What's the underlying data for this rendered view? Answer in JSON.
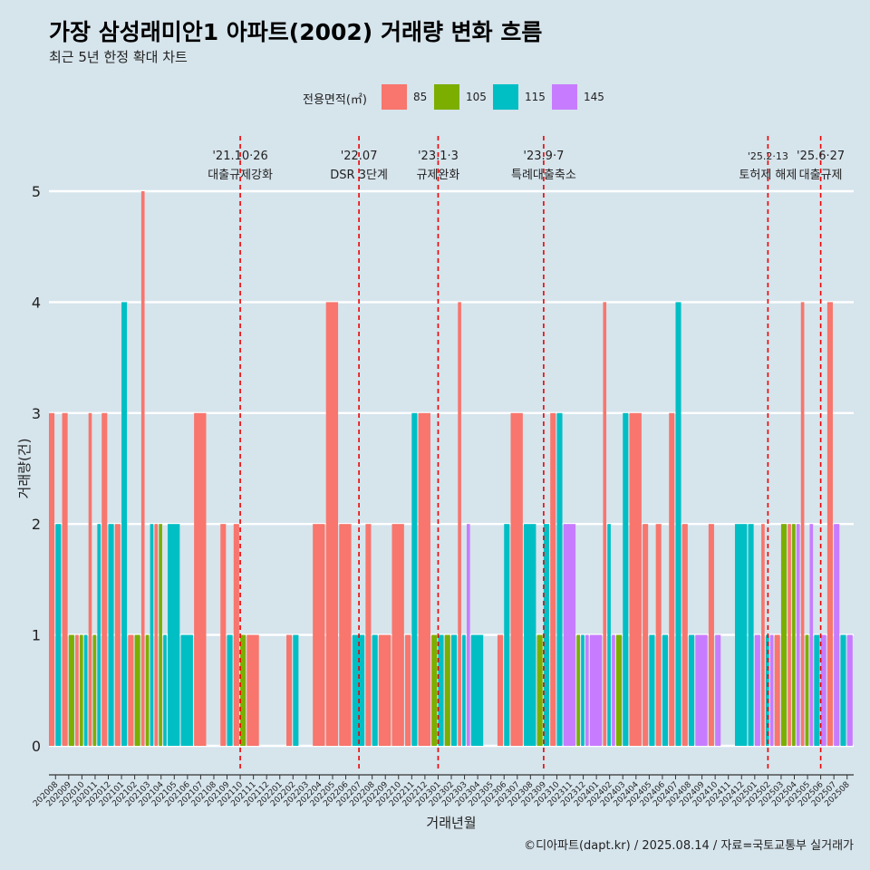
{
  "title": "가장 삼성래미안1 아파트(2002) 거래량 변화 흐름",
  "subtitle": "최근 5년 한정 확대 차트",
  "caption": "©디아파트(dapt.kr) / 2025.08.14 / 자료=국토교통부 실거래가",
  "legend": {
    "title": "전용면적(㎡)",
    "items": [
      {
        "label": "85",
        "color": "#f8766d"
      },
      {
        "label": "105",
        "color": "#7cae00"
      },
      {
        "label": "115",
        "color": "#00bfc4"
      },
      {
        "label": "145",
        "color": "#c77cff"
      }
    ]
  },
  "chart_data": {
    "type": "bar",
    "title": "가장 삼성래미안1 아파트(2002) 거래량 변화 흐름",
    "subtitle": "최근 5년 한정 확대 차트",
    "xlabel": "거래년월",
    "ylabel": "거래량(건)",
    "ylim": [
      0,
      5
    ],
    "yticks": [
      0,
      1,
      2,
      3,
      4,
      5
    ],
    "grid": true,
    "legend_position": "top",
    "categories": [
      "202008",
      "202009",
      "202010",
      "202011",
      "202012",
      "202101",
      "202102",
      "202103",
      "202104",
      "202105",
      "202106",
      "202107",
      "202108",
      "202109",
      "202110",
      "202111",
      "202112",
      "202201",
      "202202",
      "202203",
      "202204",
      "202205",
      "202206",
      "202207",
      "202208",
      "202209",
      "202210",
      "202211",
      "202212",
      "202301",
      "202302",
      "202303",
      "202304",
      "202305",
      "202306",
      "202307",
      "202308",
      "202309",
      "202310",
      "202311",
      "202312",
      "202401",
      "202402",
      "202403",
      "202404",
      "202405",
      "202406",
      "202407",
      "202408",
      "202409",
      "202410",
      "202411",
      "202412",
      "202501",
      "202502",
      "202503",
      "202504",
      "202505",
      "202506",
      "202507",
      "202508"
    ],
    "series": [
      {
        "name": "85",
        "color": "#f8766d",
        "values": [
          3,
          3,
          1,
          3,
          3,
          2,
          1,
          5,
          2,
          0,
          0,
          3,
          0,
          2,
          2,
          1,
          0,
          0,
          1,
          0,
          2,
          4,
          2,
          0,
          2,
          1,
          2,
          1,
          3,
          0,
          0,
          4,
          0,
          0,
          1,
          3,
          0,
          0,
          3,
          0,
          0,
          0,
          4,
          0,
          3,
          2,
          2,
          3,
          2,
          0,
          2,
          0,
          0,
          0,
          2,
          1,
          2,
          4,
          0,
          4,
          0
        ]
      },
      {
        "name": "105",
        "color": "#7cae00",
        "values": [
          0,
          1,
          1,
          1,
          0,
          0,
          1,
          1,
          2,
          0,
          0,
          0,
          0,
          0,
          1,
          0,
          0,
          0,
          0,
          0,
          0,
          0,
          0,
          0,
          0,
          0,
          0,
          0,
          0,
          1,
          1,
          0,
          0,
          0,
          0,
          0,
          0,
          1,
          0,
          0,
          1,
          0,
          0,
          1,
          0,
          0,
          0,
          0,
          0,
          0,
          0,
          0,
          0,
          0,
          0,
          2,
          2,
          1,
          0,
          0,
          0
        ]
      },
      {
        "name": "115",
        "color": "#00bfc4",
        "values": [
          2,
          0,
          1,
          2,
          2,
          4,
          0,
          2,
          1,
          2,
          1,
          0,
          0,
          1,
          0,
          0,
          0,
          0,
          1,
          0,
          0,
          0,
          0,
          1,
          1,
          0,
          0,
          3,
          0,
          1,
          1,
          1,
          1,
          0,
          2,
          0,
          2,
          2,
          3,
          0,
          1,
          0,
          2,
          3,
          0,
          1,
          1,
          4,
          1,
          0,
          0,
          0,
          2,
          2,
          1,
          0,
          0,
          0,
          1,
          0,
          1
        ]
      },
      {
        "name": "145",
        "color": "#c77cff",
        "values": [
          0,
          0,
          0,
          0,
          0,
          0,
          0,
          0,
          0,
          0,
          0,
          0,
          0,
          0,
          0,
          0,
          0,
          0,
          0,
          0,
          0,
          0,
          0,
          0,
          0,
          0,
          0,
          0,
          0,
          0,
          0,
          2,
          0,
          0,
          0,
          0,
          0,
          0,
          0,
          2,
          1,
          1,
          1,
          0,
          0,
          0,
          0,
          0,
          0,
          1,
          1,
          0,
          0,
          1,
          1,
          0,
          2,
          2,
          1,
          2,
          1
        ]
      }
    ],
    "events": [
      {
        "date_label": "'21.10·26",
        "desc": "대출규제강화",
        "at": "202110"
      },
      {
        "date_label": "'22.07",
        "desc": "DSR 3단계",
        "at": "202207"
      },
      {
        "date_label": "'23.1·3",
        "desc": "규제완화",
        "at": "202301"
      },
      {
        "date_label": "'23.9·7",
        "desc": "특례대출축소",
        "at": "202309"
      },
      {
        "date_label": "'25.2·13",
        "desc": "토허제 해제",
        "at": "202502"
      },
      {
        "date_label": "'25.6·27",
        "desc": "대출규제",
        "at": "202506"
      }
    ]
  }
}
